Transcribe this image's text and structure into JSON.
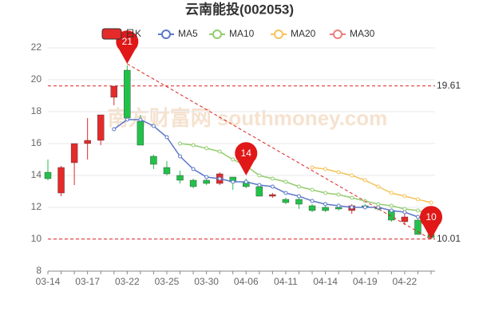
{
  "chart_data": {
    "type": "candlestick",
    "title": "云南能投(002053)",
    "categories": [
      "03-14",
      null,
      null,
      "03-17",
      null,
      null,
      "03-22",
      null,
      null,
      "03-25",
      null,
      null,
      "03-30",
      null,
      null,
      "04-06",
      null,
      null,
      "04-11",
      null,
      null,
      "04-14",
      null,
      null,
      "04-19",
      null,
      null,
      "04-22",
      null,
      null
    ],
    "ylim": [
      8,
      22
    ],
    "yticks": [
      8,
      10,
      12,
      14,
      16,
      18,
      20,
      22
    ],
    "grid": true,
    "candles": {
      "name": "日K",
      "up_color": "#e52a2a",
      "down_color": "#22c24a",
      "open": [
        14.2,
        12.9,
        14.8,
        16.0,
        16.2,
        18.9,
        20.6,
        17.4,
        15.2,
        14.5,
        14.0,
        13.7,
        13.7,
        13.5,
        13.9,
        13.6,
        13.3,
        12.7,
        12.5,
        12.5,
        12.1,
        12.0,
        12.0,
        11.8,
        12.1,
        12.0,
        11.8,
        11.1,
        11.2,
        10.3
      ],
      "high": [
        15.0,
        14.6,
        16.0,
        17.6,
        17.8,
        19.6,
        20.9,
        17.8,
        15.3,
        14.9,
        14.3,
        13.8,
        13.8,
        14.2,
        13.9,
        13.8,
        13.4,
        12.9,
        12.6,
        12.6,
        12.2,
        12.1,
        12.1,
        12.2,
        12.2,
        12.1,
        11.9,
        11.6,
        11.5,
        10.5
      ],
      "low": [
        13.7,
        12.7,
        13.4,
        15.0,
        15.9,
        18.4,
        17.5,
        15.9,
        14.4,
        14.0,
        13.5,
        13.2,
        13.4,
        13.4,
        13.1,
        13.2,
        12.7,
        12.6,
        12.2,
        11.9,
        11.7,
        11.7,
        11.8,
        11.6,
        11.9,
        11.8,
        11.1,
        10.9,
        10.3,
        10.01
      ],
      "close": [
        13.8,
        14.5,
        16.0,
        16.2,
        17.8,
        19.6,
        17.6,
        15.9,
        14.7,
        14.1,
        13.7,
        13.3,
        13.5,
        14.1,
        13.6,
        13.3,
        12.7,
        12.8,
        12.3,
        12.2,
        11.8,
        11.8,
        11.9,
        12.1,
        12.0,
        11.9,
        11.2,
        11.4,
        10.3,
        10.1
      ]
    },
    "series": [
      {
        "name": "MA5",
        "color": "#5b78c8",
        "values": [
          null,
          null,
          null,
          null,
          null,
          16.9,
          17.5,
          17.5,
          17.1,
          16.4,
          15.2,
          14.4,
          13.9,
          13.8,
          13.6,
          13.6,
          13.4,
          13.3,
          12.9,
          12.7,
          12.4,
          12.2,
          12.1,
          12.0,
          12.0,
          12.0,
          11.8,
          11.7,
          11.4,
          11.0
        ]
      },
      {
        "name": "MA10",
        "color": "#93cc6e",
        "values": [
          null,
          null,
          null,
          null,
          null,
          null,
          null,
          null,
          null,
          null,
          16.0,
          15.9,
          15.7,
          15.5,
          15.0,
          14.6,
          14.0,
          13.8,
          13.6,
          13.3,
          13.1,
          12.9,
          12.8,
          12.6,
          12.4,
          12.2,
          12.1,
          11.9,
          11.8,
          11.6
        ]
      },
      {
        "name": "MA20",
        "color": "#f5c35a",
        "values": [
          null,
          null,
          null,
          null,
          null,
          null,
          null,
          null,
          null,
          null,
          null,
          null,
          null,
          null,
          null,
          null,
          null,
          null,
          null,
          null,
          14.5,
          14.4,
          14.2,
          14.0,
          13.7,
          13.3,
          12.9,
          12.7,
          12.5,
          12.3
        ]
      },
      {
        "name": "MA30",
        "color": "#ef7d7d",
        "values": [
          null,
          null,
          null,
          null,
          null,
          null,
          null,
          null,
          null,
          null,
          null,
          null,
          null,
          null,
          null,
          null,
          null,
          null,
          null,
          null,
          null,
          null,
          null,
          null,
          null,
          null,
          null,
          null,
          null,
          null
        ]
      }
    ],
    "ref_lines": [
      19.61,
      10.01
    ],
    "pins": [
      {
        "index": 6,
        "value": 21
      },
      {
        "index": 15,
        "value": 14
      },
      {
        "index": 29,
        "value": 10
      }
    ],
    "watermark": "南方财富网 southmoney.com"
  }
}
